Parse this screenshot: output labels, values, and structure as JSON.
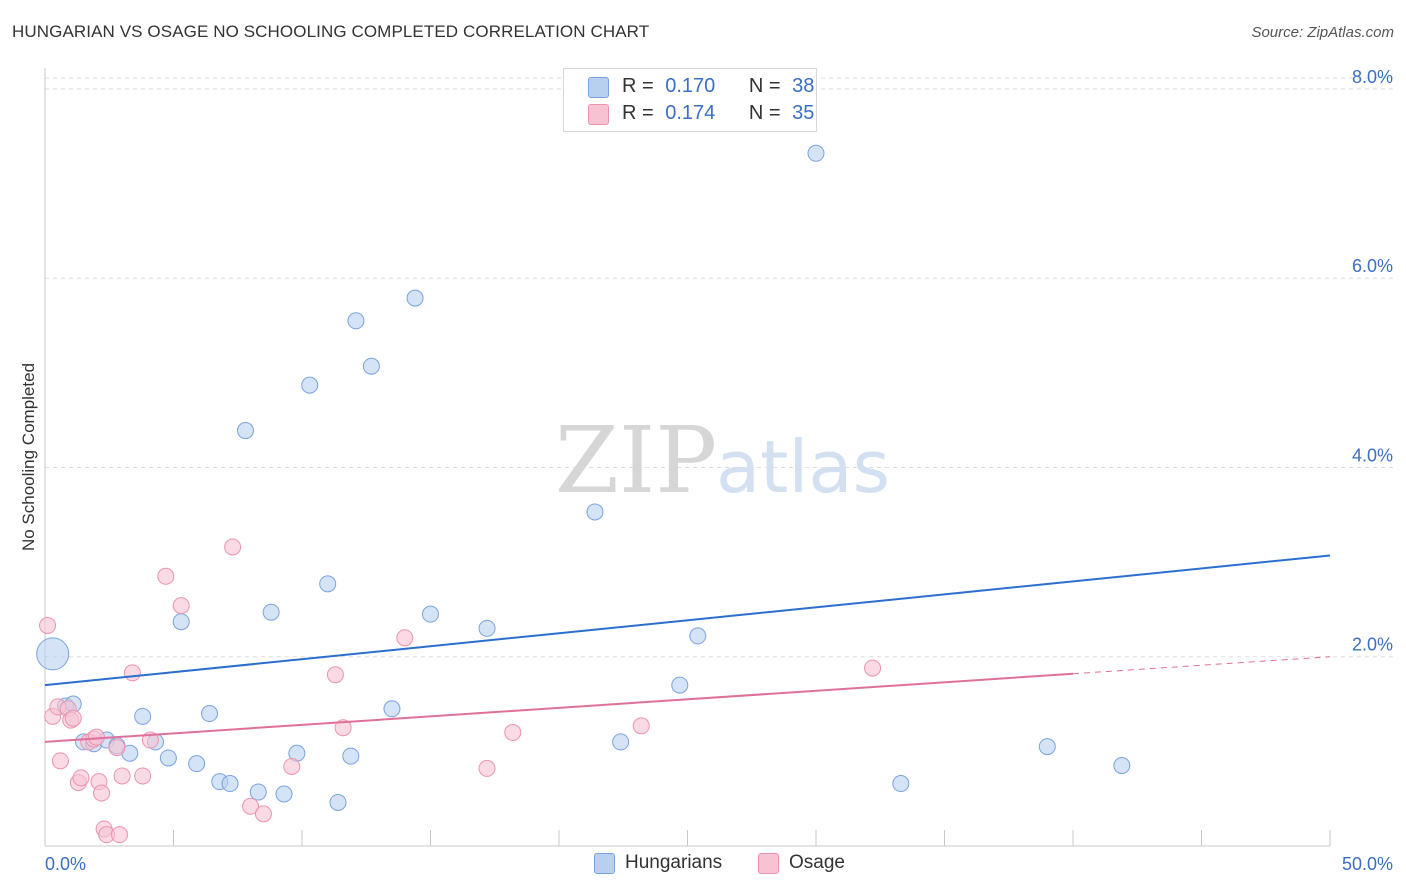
{
  "title": "HUNGARIAN VS OSAGE NO SCHOOLING COMPLETED CORRELATION CHART",
  "source": "Source: ZipAtlas.com",
  "watermark": {
    "zip": "ZIP",
    "atlas": "atlas"
  },
  "legend": {
    "rows": [
      {
        "r_label": "R =",
        "r_value": "0.170",
        "n_label": "N =",
        "n_value": "38"
      },
      {
        "r_label": "R =",
        "r_value": "0.174",
        "n_label": "N =",
        "n_value": "35"
      }
    ]
  },
  "colors": {
    "hungarians_fill": "#b8d0f0",
    "hungarians_stroke": "#7aa3de",
    "hungarians_line": "#2b6fce",
    "osage_fill": "#f7c3d3",
    "osage_stroke": "#ec93ae",
    "osage_line": "#e0709a",
    "tick_label": "#3a6fc4",
    "grid": "#dddddd"
  },
  "chart_data": {
    "type": "scatter",
    "title": "HUNGARIAN VS OSAGE NO SCHOOLING COMPLETED CORRELATION CHART",
    "xlabel": "",
    "ylabel": "No Schooling Completed",
    "xlim": [
      0,
      50
    ],
    "ylim": [
      0,
      8.2
    ],
    "x_tick_labels": [
      "0.0%",
      "50.0%"
    ],
    "y_ticks": [
      {
        "value": 2,
        "label": "2.0%"
      },
      {
        "value": 4,
        "label": "4.0%"
      },
      {
        "value": 6,
        "label": "6.0%"
      },
      {
        "value": 8,
        "label": "8.0%"
      }
    ],
    "grid": true,
    "legend_position": "bottom-center",
    "series": [
      {
        "name": "Hungarians",
        "r": 0.17,
        "n": 38,
        "points": [
          {
            "x": 0.3,
            "y": 2.03,
            "size": "large"
          },
          {
            "x": 0.8,
            "y": 1.48
          },
          {
            "x": 1.1,
            "y": 1.5
          },
          {
            "x": 1.5,
            "y": 1.1
          },
          {
            "x": 1.9,
            "y": 1.08
          },
          {
            "x": 2.4,
            "y": 1.12
          },
          {
            "x": 2.8,
            "y": 1.06
          },
          {
            "x": 3.3,
            "y": 0.98
          },
          {
            "x": 3.8,
            "y": 1.37
          },
          {
            "x": 4.3,
            "y": 1.1
          },
          {
            "x": 4.8,
            "y": 0.93
          },
          {
            "x": 5.3,
            "y": 2.37
          },
          {
            "x": 5.9,
            "y": 0.87
          },
          {
            "x": 6.4,
            "y": 1.4
          },
          {
            "x": 6.8,
            "y": 0.68
          },
          {
            "x": 7.2,
            "y": 0.66
          },
          {
            "x": 7.8,
            "y": 4.39
          },
          {
            "x": 8.3,
            "y": 0.57
          },
          {
            "x": 8.8,
            "y": 2.47
          },
          {
            "x": 9.3,
            "y": 0.55
          },
          {
            "x": 9.8,
            "y": 0.98
          },
          {
            "x": 10.3,
            "y": 4.87
          },
          {
            "x": 11.0,
            "y": 2.77
          },
          {
            "x": 11.4,
            "y": 0.46
          },
          {
            "x": 11.9,
            "y": 0.95
          },
          {
            "x": 12.1,
            "y": 5.55
          },
          {
            "x": 12.7,
            "y": 5.07
          },
          {
            "x": 13.5,
            "y": 1.45
          },
          {
            "x": 14.4,
            "y": 5.79
          },
          {
            "x": 15.0,
            "y": 2.45
          },
          {
            "x": 17.2,
            "y": 2.3
          },
          {
            "x": 21.4,
            "y": 3.53
          },
          {
            "x": 22.4,
            "y": 1.1
          },
          {
            "x": 24.7,
            "y": 1.7
          },
          {
            "x": 25.4,
            "y": 2.22
          },
          {
            "x": 30.0,
            "y": 7.32
          },
          {
            "x": 33.3,
            "y": 0.66
          },
          {
            "x": 39.0,
            "y": 1.05
          },
          {
            "x": 41.9,
            "y": 0.85
          }
        ],
        "trend": {
          "x": [
            0,
            50
          ],
          "y": [
            1.7,
            3.07
          ],
          "style": "solid"
        }
      },
      {
        "name": "Osage",
        "r": 0.174,
        "n": 35,
        "points": [
          {
            "x": 0.1,
            "y": 2.33
          },
          {
            "x": 0.3,
            "y": 1.37
          },
          {
            "x": 0.5,
            "y": 1.47
          },
          {
            "x": 0.6,
            "y": 0.9
          },
          {
            "x": 0.9,
            "y": 1.45
          },
          {
            "x": 1.0,
            "y": 1.33
          },
          {
            "x": 1.1,
            "y": 1.35
          },
          {
            "x": 1.3,
            "y": 0.67
          },
          {
            "x": 1.4,
            "y": 0.72
          },
          {
            "x": 1.7,
            "y": 1.1
          },
          {
            "x": 1.9,
            "y": 1.13
          },
          {
            "x": 2.0,
            "y": 1.15
          },
          {
            "x": 2.1,
            "y": 0.68
          },
          {
            "x": 2.2,
            "y": 0.56
          },
          {
            "x": 2.3,
            "y": 0.18
          },
          {
            "x": 2.4,
            "y": 0.12
          },
          {
            "x": 2.8,
            "y": 1.04
          },
          {
            "x": 2.9,
            "y": 0.12
          },
          {
            "x": 3.0,
            "y": 0.74
          },
          {
            "x": 3.4,
            "y": 1.83
          },
          {
            "x": 3.8,
            "y": 0.74
          },
          {
            "x": 4.1,
            "y": 1.12
          },
          {
            "x": 4.7,
            "y": 2.85
          },
          {
            "x": 5.3,
            "y": 2.54
          },
          {
            "x": 7.3,
            "y": 3.16
          },
          {
            "x": 8.0,
            "y": 0.42
          },
          {
            "x": 8.5,
            "y": 0.34
          },
          {
            "x": 9.6,
            "y": 0.84
          },
          {
            "x": 11.3,
            "y": 1.81
          },
          {
            "x": 11.6,
            "y": 1.25
          },
          {
            "x": 14.0,
            "y": 2.2
          },
          {
            "x": 17.2,
            "y": 0.82
          },
          {
            "x": 18.2,
            "y": 1.2
          },
          {
            "x": 23.2,
            "y": 1.27
          },
          {
            "x": 32.2,
            "y": 1.88
          }
        ],
        "trend": {
          "x": [
            0,
            40
          ],
          "y": [
            1.1,
            1.82
          ],
          "style": "solid",
          "extension": {
            "x": [
              40,
              50
            ],
            "y": [
              1.82,
              2.0
            ],
            "style": "dashed"
          }
        }
      }
    ]
  },
  "bottom_legend": [
    {
      "label": "Hungarians"
    },
    {
      "label": "Osage"
    }
  ]
}
